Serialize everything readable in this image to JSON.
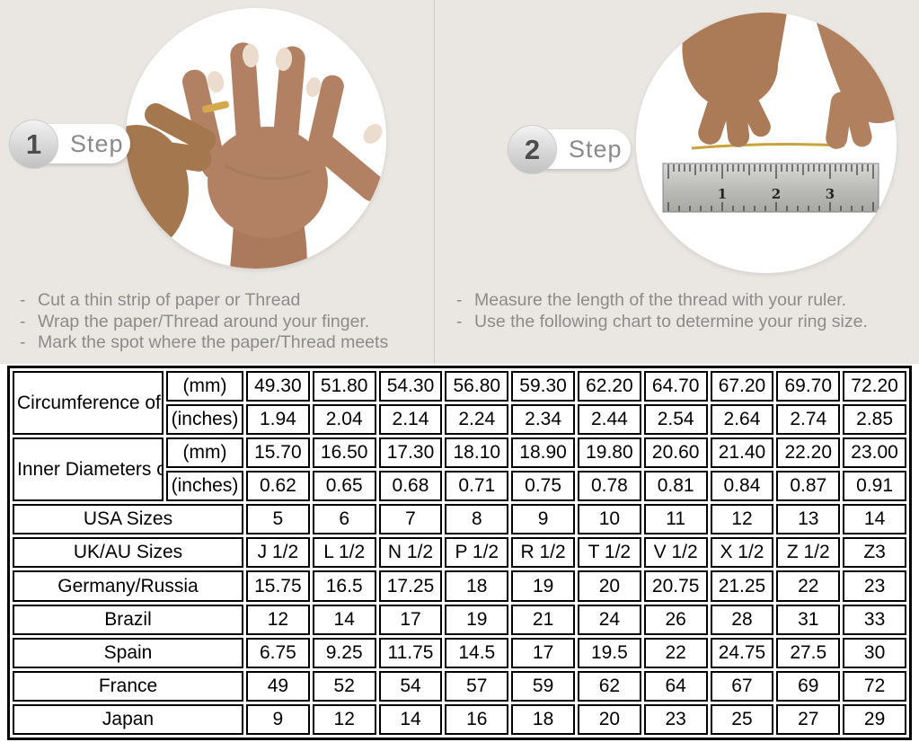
{
  "ui": {
    "bullet": "-"
  },
  "colors": {
    "top_background": "#eae7e3",
    "shaded_cell": "#d9d9d9",
    "table_border": "#000000",
    "step_text": "#8a8a8a",
    "thread_gold": "#c8a23c"
  },
  "steps": [
    {
      "number": "1",
      "label": "Step",
      "photo": "hand-with-ring-being-measured",
      "instructions": [
        "Cut a thin strip of paper or Thread",
        "Wrap the paper/Thread around your finger.",
        "Mark the spot where the paper/Thread meets"
      ]
    },
    {
      "number": "2",
      "label": "Step",
      "photo": "thread-measured-on-ruler",
      "ruler_numbers": [
        "1",
        "2",
        "3"
      ],
      "instructions": [
        "Measure the length of the thread with your ruler.",
        "Use the following chart to determine your ring size."
      ]
    }
  ],
  "table": {
    "measure_groups": [
      {
        "label": "Circumference of Your Finger",
        "sub_rows": [
          {
            "unit": "(mm)",
            "shaded": true,
            "values": [
              "49.30",
              "51.80",
              "54.30",
              "56.80",
              "59.30",
              "62.20",
              "64.70",
              "67.20",
              "69.70",
              "72.20"
            ]
          },
          {
            "unit": "(inches)",
            "shaded": false,
            "values": [
              "1.94",
              "2.04",
              "2.14",
              "2.24",
              "2.34",
              "2.44",
              "2.54",
              "2.64",
              "2.74",
              "2.85"
            ]
          }
        ]
      },
      {
        "label": "Inner Diameters of Rings",
        "sub_rows": [
          {
            "unit": "(mm)",
            "shaded": false,
            "values": [
              "15.70",
              "16.50",
              "17.30",
              "18.10",
              "18.90",
              "19.80",
              "20.60",
              "21.40",
              "22.20",
              "23.00"
            ]
          },
          {
            "unit": "(inches)",
            "shaded": false,
            "values": [
              "0.62",
              "0.65",
              "0.68",
              "0.71",
              "0.75",
              "0.78",
              "0.81",
              "0.84",
              "0.87",
              "0.91"
            ]
          }
        ]
      }
    ],
    "size_rows": [
      {
        "label": "USA Sizes",
        "shaded": true,
        "values": [
          "5",
          "6",
          "7",
          "8",
          "9",
          "10",
          "11",
          "12",
          "13",
          "14"
        ]
      },
      {
        "label": "UK/AU Sizes",
        "shaded": false,
        "values": [
          "J 1/2",
          "L 1/2",
          "N 1/2",
          "P 1/2",
          "R 1/2",
          "T 1/2",
          "V 1/2",
          "X 1/2",
          "Z 1/2",
          "Z3"
        ]
      },
      {
        "label": "Germany/Russia",
        "shaded": false,
        "values": [
          "15.75",
          "16.5",
          "17.25",
          "18",
          "19",
          "20",
          "20.75",
          "21.25",
          "22",
          "23"
        ]
      },
      {
        "label": "Brazil",
        "shaded": false,
        "values": [
          "12",
          "14",
          "17",
          "19",
          "21",
          "24",
          "26",
          "28",
          "31",
          "33"
        ]
      },
      {
        "label": "Spain",
        "shaded": false,
        "values": [
          "6.75",
          "9.25",
          "11.75",
          "14.5",
          "17",
          "19.5",
          "22",
          "24.75",
          "27.5",
          "30"
        ]
      },
      {
        "label": "France",
        "shaded": false,
        "values": [
          "49",
          "52",
          "54",
          "57",
          "59",
          "62",
          "64",
          "67",
          "69",
          "72"
        ]
      },
      {
        "label": "Japan",
        "shaded": false,
        "values": [
          "9",
          "12",
          "14",
          "16",
          "18",
          "20",
          "23",
          "25",
          "27",
          "29"
        ]
      }
    ]
  }
}
